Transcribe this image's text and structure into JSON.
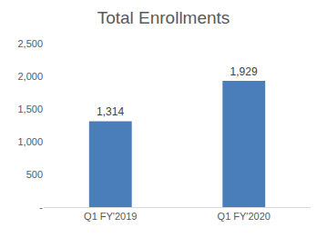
{
  "chart_data": {
    "type": "bar",
    "title": "Total Enrollments",
    "categories": [
      "Q1 FY'2019",
      "Q1 FY'2020"
    ],
    "values": [
      1314,
      1929
    ],
    "value_labels": [
      "1,314",
      "1,929"
    ],
    "data_labels": true,
    "color": "#4a7ebb",
    "ylim": [
      0,
      2500
    ],
    "yticks": [
      {
        "value": 0,
        "label": "-"
      },
      500,
      {
        "value": 1000,
        "label": "1,000"
      },
      {
        "value": 1500,
        "label": "1,500"
      },
      {
        "value": 2000,
        "label": "2,000"
      },
      {
        "value": 2500,
        "label": "2,500"
      }
    ],
    "grid": false
  }
}
